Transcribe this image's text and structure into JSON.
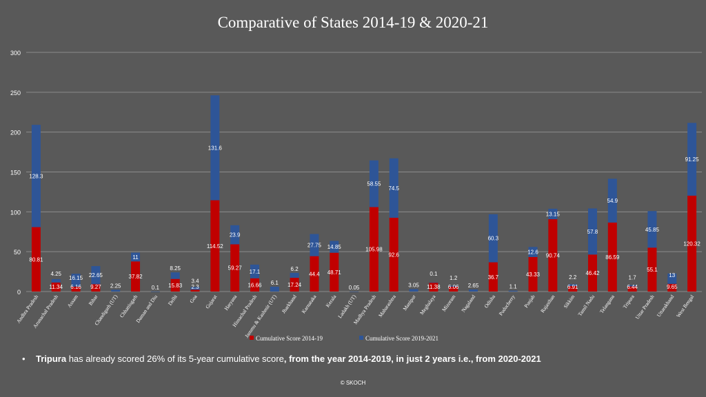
{
  "chart_data": {
    "type": "bar",
    "stacked": true,
    "title": "Comparative of States 2014-19 & 2020-21",
    "ylim": [
      0,
      300
    ],
    "yticks": [
      0,
      50,
      100,
      150,
      200,
      250,
      300
    ],
    "grid": true,
    "legend_position": "bottom",
    "categories": [
      "Andhra Pradesh",
      "Arunachal Pradesh",
      "Assam",
      "Bihar",
      "Chandigarh (UT)",
      "Chhattisgarh",
      "Daman and Diu",
      "Delhi",
      "Goa",
      "Gujarat",
      "Haryana",
      "Himachal Pradesh",
      "Jammu & Kashmir (UT)",
      "Jharkhand",
      "Karnataka",
      "Kerala",
      "Ladakh (UT)",
      "Madhya Pradesh",
      "Maharashtra",
      "Manipur",
      "Meghalaya",
      "Mizoram",
      "Nagaland",
      "Odisha",
      "Puducherry",
      "Punjab",
      "Rajasthan",
      "Sikkim",
      "Tamil Nadu",
      "Telangana",
      "Tripura",
      "Uttar Pradesh",
      "Uttarakhand",
      "West Bengal"
    ],
    "series": [
      {
        "name": "Cumulative Score 2014-19",
        "color": "#c00000",
        "values": [
          80.81,
          11.34,
          6.16,
          9.27,
          null,
          37.82,
          null,
          15.83,
          2.3,
          114.52,
          59.27,
          16.66,
          null,
          17.24,
          44.4,
          48.71,
          null,
          105.98,
          92.6,
          null,
          11.38,
          6.06,
          null,
          36.7,
          null,
          43.33,
          90.74,
          6.91,
          46.42,
          86.59,
          6.44,
          55.1,
          9.65,
          120.32
        ],
        "labels": [
          "80.81",
          "11.34",
          "6.16",
          "9.27",
          "",
          "37.82",
          "",
          "15.83",
          "2.3",
          "114.52",
          "59.27",
          "16.66",
          "",
          "17.24",
          "44.4",
          "48.71",
          "",
          "105.98",
          "92.6",
          "",
          "11.38",
          "6.06",
          "",
          "36.7",
          "",
          "43.33",
          "90.74",
          "6.91",
          "46.42",
          "86.59",
          "6.44",
          "55.1",
          "9.65",
          "120.32"
        ]
      },
      {
        "name": "Cumulative Score 2019-2021",
        "color": "#2e5597",
        "values": [
          128.3,
          4.25,
          16.15,
          22.65,
          2.25,
          11,
          0.1,
          8.25,
          3.4,
          131.6,
          23.9,
          17.1,
          6.1,
          6.2,
          27.75,
          14.85,
          0.05,
          58.55,
          74.5,
          3.05,
          0.1,
          1.2,
          2.65,
          60.3,
          1.1,
          12.6,
          13.15,
          2.2,
          57.8,
          54.9,
          1.7,
          45.85,
          13,
          91.25
        ],
        "labels": [
          "128.3",
          "4.25",
          "16.15",
          "22.65",
          "2.25",
          "11",
          "0.1",
          "8.25",
          "3.4",
          "131.6",
          "23.9",
          "17.1",
          "6.1",
          "6.2",
          "27.75",
          "14.85",
          "0.05",
          "58.55",
          "74.5",
          "3.05",
          "0.1",
          "1.2",
          "2.65",
          "60.3",
          "1.1",
          "12.6",
          "13.15",
          "2.2",
          "57.8",
          "54.9",
          "1.7",
          "45.85",
          "13",
          "91.25"
        ]
      }
    ]
  },
  "bullet": {
    "symbol": "•",
    "bold1": "Tripura",
    "text1": " has already scored 26% of its 5-year cumulative score",
    "bold2": ", from the year 2014-2019,  in just 2 years i.e., from 2020-2021"
  },
  "footer": "© SKOCH"
}
